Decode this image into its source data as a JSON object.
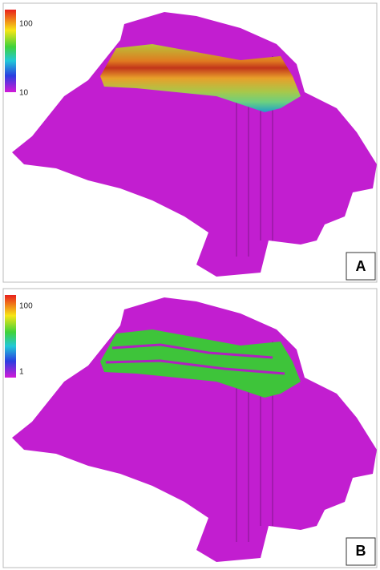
{
  "panels": [
    {
      "label": "A",
      "colorbar": {
        "max_label": "100",
        "min_label": "10"
      }
    },
    {
      "label": "B",
      "colorbar": {
        "max_label": "100",
        "min_label": "1"
      }
    }
  ]
}
